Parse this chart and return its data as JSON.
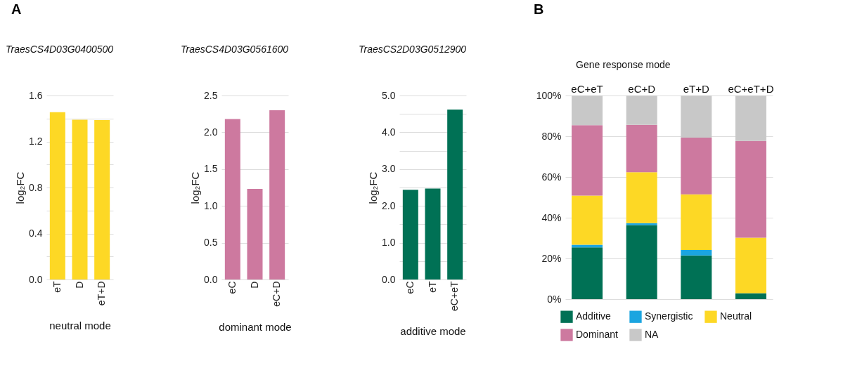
{
  "chart_data": [
    {
      "type": "bar",
      "title": "TraesCS4D03G0400500",
      "xlabel": "neutral mode",
      "ylabel": "log₂FC",
      "annotations": [
        "A"
      ],
      "categories": [
        "eT",
        "D",
        "eT+D"
      ],
      "values": [
        1.455,
        1.39,
        1.386
      ],
      "color": "#fdd825",
      "ylim": [
        0,
        1.6
      ],
      "yticks": [
        {
          "value": 0,
          "label": "0.0"
        },
        {
          "value": 0.2,
          "label": null
        },
        0.4,
        {
          "value": 0.6,
          "label": null
        },
        0.8,
        {
          "value": 1.0,
          "label": null
        },
        1.2,
        {
          "value": 1.4,
          "label": null
        },
        1.6
      ],
      "grid": "y"
    },
    {
      "type": "bar",
      "title": "TraesCS4D03G0561600",
      "xlabel": "dominant mode",
      "ylabel": "log₂FC",
      "categories": [
        "eC",
        "D",
        "eC+D"
      ],
      "values": [
        2.18,
        1.23,
        2.3
      ],
      "color": "#cd799f",
      "ylim": [
        0,
        2.5
      ],
      "yticks": [
        {
          "value": 0,
          "label": "0.0"
        },
        0.5,
        {
          "value": 1,
          "label": "1.0"
        },
        1.5,
        {
          "value": 2,
          "label": "2.0"
        },
        2.5
      ],
      "grid": "y"
    },
    {
      "type": "bar",
      "title": "TraesCS2D03G0512900",
      "xlabel": "additive mode",
      "ylabel": "log₂FC",
      "categories": [
        "eC",
        "eT",
        "eC+eT"
      ],
      "values": [
        2.44,
        2.47,
        4.62
      ],
      "color": "#007155",
      "ylim": [
        0,
        5
      ],
      "yticks": [
        {
          "value": 0,
          "label": "0.0"
        },
        {
          "value": 0.5,
          "label": null
        },
        {
          "value": 1,
          "label": "1.0"
        },
        {
          "value": 1.5,
          "label": null
        },
        {
          "value": 2,
          "label": "2.0"
        },
        {
          "value": 2.5,
          "label": null
        },
        {
          "value": 3,
          "label": "3.0"
        },
        {
          "value": 3.5,
          "label": null
        },
        {
          "value": 4,
          "label": "4.0"
        },
        {
          "value": 4.5,
          "label": null
        },
        {
          "value": 5,
          "label": "5.0"
        }
      ],
      "grid": "y"
    },
    {
      "type": "bar",
      "stacked": true,
      "title": "Gene response mode",
      "annotations": [
        "B"
      ],
      "categories": [
        "eC+eT",
        "eC+D",
        "eT+D",
        "eC+eT+D"
      ],
      "ylim": [
        0,
        100
      ],
      "yticks": [
        {
          "value": 0,
          "label": "0%"
        },
        {
          "value": 20,
          "label": "20%"
        },
        {
          "value": 40,
          "label": "40%"
        },
        {
          "value": 60,
          "label": "60%"
        },
        {
          "value": 80,
          "label": "80%"
        },
        {
          "value": 100,
          "label": "100%"
        }
      ],
      "grid": "y",
      "legend": "bottom",
      "series": [
        {
          "name": "Additive",
          "color": "#007155",
          "values": [
            25.4,
            36.4,
            21.5,
            2.9
          ]
        },
        {
          "name": "Synergistic",
          "color": "#1ba5e0",
          "values": [
            1.3,
            0.9,
            2.6,
            0
          ]
        },
        {
          "name": "Neutral",
          "color": "#fdd825",
          "values": [
            24.2,
            25.0,
            27.4,
            27.3
          ]
        },
        {
          "name": "Dominant",
          "color": "#cd799f",
          "values": [
            34.5,
            23.3,
            27.8,
            47.5
          ]
        },
        {
          "name": "NA",
          "color": "#c8c8c8",
          "values": [
            14.6,
            14.4,
            20.7,
            22.3
          ]
        }
      ]
    }
  ]
}
